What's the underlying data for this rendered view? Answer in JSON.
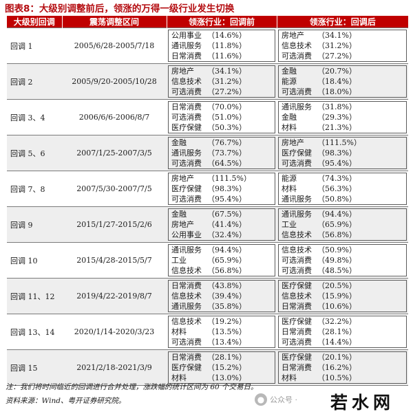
{
  "title": "图表8：大级别调整前后，领涨的万得一级行业发生切换",
  "headers": {
    "label": "大级别回调",
    "range": "震荡调整区间",
    "before": "领涨行业：回调前",
    "after": "领涨行业：回调后"
  },
  "rows": [
    {
      "label": "回调 1",
      "range": "2005/6/28-2005/7/18",
      "before": [
        {
          "name": "公用事业",
          "value": "（14.6%）"
        },
        {
          "name": "通讯服务",
          "value": "（11.8%）"
        },
        {
          "name": "日常消费",
          "value": "（11.6%）"
        }
      ],
      "after": [
        {
          "name": "房地产",
          "value": "（34.1%）"
        },
        {
          "name": "信息技术",
          "value": "（31.2%）"
        },
        {
          "name": "可选消费",
          "value": "（27.2%）"
        }
      ]
    },
    {
      "label": "回调 2",
      "range": "2005/9/20-2005/10/28",
      "before": [
        {
          "name": "房地产",
          "value": "（34.1%）"
        },
        {
          "name": "信息技术",
          "value": "（31.2%）"
        },
        {
          "name": "可选消费",
          "value": "（27.2%）"
        }
      ],
      "after": [
        {
          "name": "金融",
          "value": "（20.7%）"
        },
        {
          "name": "能源",
          "value": "（18.4%）"
        },
        {
          "name": "可选消费",
          "value": "（18.0%）"
        }
      ]
    },
    {
      "label": "回调 3、4",
      "range": "2006/6/6-2006/8/7",
      "before": [
        {
          "name": "日常消费",
          "value": "（70.0%）"
        },
        {
          "name": "可选消费",
          "value": "（51.0%）"
        },
        {
          "name": "医疗保健",
          "value": "（50.3%）"
        }
      ],
      "after": [
        {
          "name": "通讯服务",
          "value": "（31.8%）"
        },
        {
          "name": "金融",
          "value": "（29.3%）"
        },
        {
          "name": "材料",
          "value": "（21.3%）"
        }
      ]
    },
    {
      "label": "回调 5、6",
      "range": "2007/1/25-2007/3/5",
      "before": [
        {
          "name": "金融",
          "value": "（76.7%）"
        },
        {
          "name": "通讯服务",
          "value": "（73.7%）"
        },
        {
          "name": "可选消费",
          "value": "（64.5%）"
        }
      ],
      "after": [
        {
          "name": "房地产",
          "value": "（111.5%）"
        },
        {
          "name": "医疗保健",
          "value": "（98.3%）"
        },
        {
          "name": "可选消费",
          "value": "（95.4%）"
        }
      ]
    },
    {
      "label": "回调 7、8",
      "range": "2007/5/30-2007/7/5",
      "before": [
        {
          "name": "房地产",
          "value": "（111.5%）"
        },
        {
          "name": "医疗保健",
          "value": "（98.3%）"
        },
        {
          "name": "可选消费",
          "value": "（95.4%）"
        }
      ],
      "after": [
        {
          "name": "能源",
          "value": "（74.3%）"
        },
        {
          "name": "材料",
          "value": "（56.3%）"
        },
        {
          "name": "通讯服务",
          "value": "（50.8%）"
        }
      ]
    },
    {
      "label": "回调 9",
      "range": "2015/1/27-2015/2/6",
      "before": [
        {
          "name": "金融",
          "value": "（67.5%）"
        },
        {
          "name": "房地产",
          "value": "（41.4%）"
        },
        {
          "name": "公用事业",
          "value": "（32.4%）"
        }
      ],
      "after": [
        {
          "name": "通讯服务",
          "value": "（94.4%）"
        },
        {
          "name": "工业",
          "value": "（65.9%）"
        },
        {
          "name": "信息技术",
          "value": "（56.8%）"
        }
      ]
    },
    {
      "label": "回调 10",
      "range": "2015/4/28-2015/5/7",
      "before": [
        {
          "name": "通讯服务",
          "value": "（94.4%）"
        },
        {
          "name": "工业",
          "value": "（65.9%）"
        },
        {
          "name": "信息技术",
          "value": "（56.8%）"
        }
      ],
      "after": [
        {
          "name": "信息技术",
          "value": "（50.9%）"
        },
        {
          "name": "可选消费",
          "value": "（49.8%）"
        },
        {
          "name": "可选消费",
          "value": "（48.5%）"
        }
      ]
    },
    {
      "label": "回调 11、12",
      "range": "2019/4/22-2019/8/7",
      "before": [
        {
          "name": "日常消费",
          "value": "（43.8%）"
        },
        {
          "name": "信息技术",
          "value": "（39.4%）"
        },
        {
          "name": "通讯服务",
          "value": "（35.8%）"
        }
      ],
      "after": [
        {
          "name": "医疗保健",
          "value": "（20.5%）"
        },
        {
          "name": "信息技术",
          "value": "（15.9%）"
        },
        {
          "name": "日常消费",
          "value": "（10.6%）"
        }
      ]
    },
    {
      "label": "回调 13、14",
      "range": "2020/1/14-2020/3/23",
      "before": [
        {
          "name": "信息技术",
          "value": "（19.2%）"
        },
        {
          "name": "材料",
          "value": "（13.5%）"
        },
        {
          "name": "可选消费",
          "value": "（13.4%）"
        }
      ],
      "after": [
        {
          "name": "医疗保健",
          "value": "（32.2%）"
        },
        {
          "name": "日常消费",
          "value": "（28.1%）"
        },
        {
          "name": "可选消费",
          "value": "（14.4%）"
        }
      ]
    },
    {
      "label": "回调 15",
      "range": "2021/2/18-2021/3/9",
      "before": [
        {
          "name": "日常消费",
          "value": "（28.1%）"
        },
        {
          "name": "医疗保健",
          "value": "（15.2%）"
        },
        {
          "name": "材料",
          "value": "（13.0%）"
        }
      ],
      "after": [
        {
          "name": "医疗保健",
          "value": "（20.1%）"
        },
        {
          "name": "日常消费",
          "value": "（16.2%）"
        },
        {
          "name": "材料",
          "value": "（10.5%）"
        }
      ]
    }
  ],
  "notes": {
    "note": "注：我们将时间临近的回调进行合并处理，涨跌幅的统计区间为 60 个交易日。",
    "source": "资料来源：Wind、粤开证券研究院。"
  },
  "watermark": {
    "icon": "wechat-icon",
    "account": "公众号 ·",
    "brand": "若水网"
  }
}
